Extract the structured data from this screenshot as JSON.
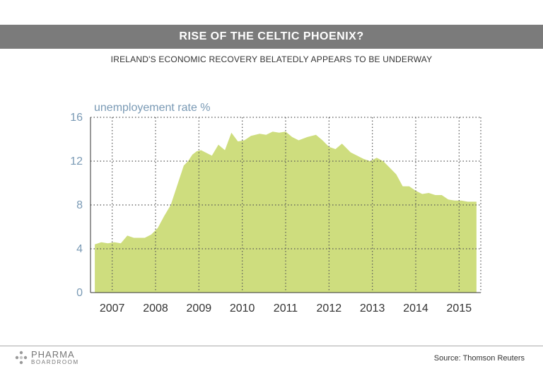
{
  "header": {
    "title": "RISE OF THE CELTIC PHOENIX?",
    "subtitle": "IRELAND'S ECONOMIC RECOVERY BELATEDLY APPEARS TO BE UNDERWAY"
  },
  "footer": {
    "logo_line1": "PHARMA",
    "logo_line2": "BOARDROOM",
    "source": "Source: Thomson Reuters"
  },
  "colors": {
    "area_fill": "#cedd7e",
    "title_bar": "#7b7b7b",
    "axis_text": "#7a9ab5",
    "grid": "#555555"
  },
  "chart_data": {
    "type": "area",
    "title": "RISE OF THE CELTIC PHOENIX?",
    "subtitle": "IRELAND'S ECONOMIC RECOVERY BELATEDLY APPEARS TO BE UNDERWAY",
    "ylabel": "unemployement rate %",
    "xlabel": "",
    "ylim": [
      0,
      16
    ],
    "xlim": [
      2006.5,
      2015.5
    ],
    "y_ticks": [
      "0",
      "4",
      "8",
      "12",
      "16"
    ],
    "x_ticks": [
      "2007",
      "2008",
      "2009",
      "2010",
      "2011",
      "2012",
      "2013",
      "2014",
      "2015"
    ],
    "grid": "dotted, major ticks on both axes",
    "legend": "none",
    "series": [
      {
        "x": [
          2006.6,
          2006.75,
          2006.9,
          2007.05,
          2007.2,
          2007.35,
          2007.5,
          2007.6,
          2007.75,
          2007.9,
          2008.05,
          2008.2,
          2008.35,
          2008.5,
          2008.65,
          2008.75,
          2008.85,
          2008.95,
          2009.05,
          2009.15,
          2009.3,
          2009.45,
          2009.6,
          2009.75,
          2009.9,
          2010.05,
          2010.2,
          2010.4,
          2010.55,
          2010.7,
          2010.85,
          2011.0,
          2011.15,
          2011.3,
          2011.5,
          2011.7,
          2011.85,
          2012.0,
          2012.15,
          2012.3,
          2012.5,
          2012.65,
          2012.8,
          2012.95,
          2013.1,
          2013.25,
          2013.4,
          2013.55,
          2013.7,
          2013.85,
          2014.0,
          2014.15,
          2014.3,
          2014.45,
          2014.6,
          2014.75,
          2014.9,
          2015.05,
          2015.2,
          2015.4
        ],
        "values": [
          4.4,
          4.6,
          4.5,
          4.6,
          4.5,
          5.2,
          5.0,
          5.0,
          5.0,
          5.3,
          5.9,
          7.0,
          8.0,
          9.8,
          11.6,
          12.0,
          12.6,
          12.9,
          13.0,
          12.8,
          12.5,
          13.5,
          13.0,
          14.6,
          13.8,
          13.9,
          14.3,
          14.5,
          14.4,
          14.7,
          14.6,
          14.7,
          14.2,
          13.9,
          14.2,
          14.4,
          13.9,
          13.3,
          13.1,
          13.6,
          12.8,
          12.5,
          12.2,
          12.0,
          12.3,
          12.0,
          11.4,
          10.8,
          9.7,
          9.7,
          9.3,
          9.0,
          9.1,
          8.9,
          8.9,
          8.5,
          8.4,
          8.4,
          8.3,
          8.3
        ]
      }
    ]
  }
}
